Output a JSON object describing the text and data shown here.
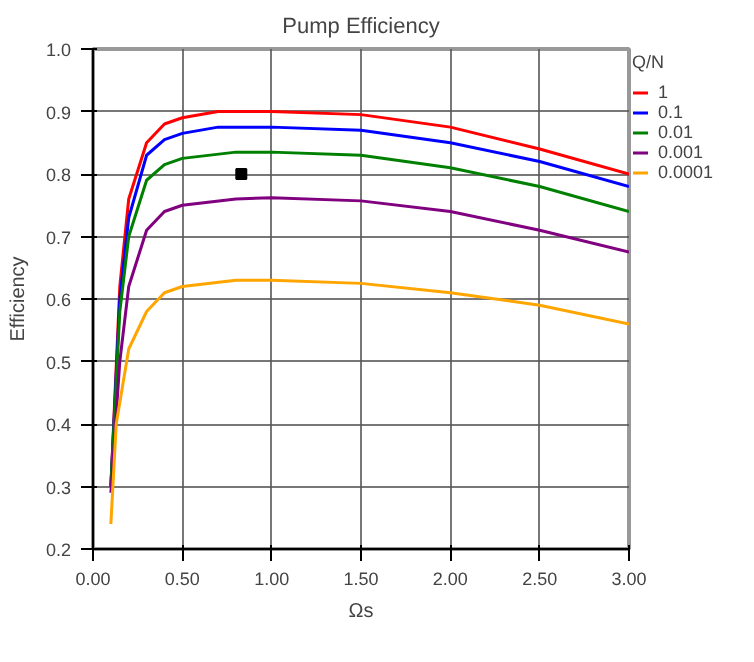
{
  "chart_data": {
    "type": "line",
    "title": "Pump Efficiency",
    "xlabel": "Ωs",
    "ylabel": "Efficiency",
    "legend_title": "Q/N",
    "xlim": [
      0,
      3
    ],
    "ylim": [
      0.2,
      1.0
    ],
    "xticks": [
      {
        "value": 0,
        "label": "0.00"
      },
      {
        "value": 0.5,
        "label": "0.50"
      },
      {
        "value": 1,
        "label": "1.00"
      },
      {
        "value": 1.5,
        "label": "1.50"
      },
      {
        "value": 2,
        "label": "2.00"
      },
      {
        "value": 2.5,
        "label": "2.50"
      },
      {
        "value": 3,
        "label": "3.00"
      }
    ],
    "yticks": [
      {
        "value": 0.2,
        "label": "0.2"
      },
      {
        "value": 0.3,
        "label": "0.3"
      },
      {
        "value": 0.4,
        "label": "0.4"
      },
      {
        "value": 0.5,
        "label": "0.5"
      },
      {
        "value": 0.6,
        "label": "0.6"
      },
      {
        "value": 0.7,
        "label": "0.7"
      },
      {
        "value": 0.8,
        "label": "0.8"
      },
      {
        "value": 0.9,
        "label": "0.9"
      },
      {
        "value": 1.0,
        "label": "1.0"
      }
    ],
    "grid": true,
    "legend": "top right",
    "marker": "none",
    "line_style": "solid",
    "series": [
      {
        "name": "1",
        "color": "#ff0000",
        "x": [
          0.1,
          0.15,
          0.2,
          0.3,
          0.4,
          0.5,
          0.7,
          1.0,
          1.5,
          2.0,
          2.5,
          3.0
        ],
        "values": [
          0.3,
          0.62,
          0.76,
          0.85,
          0.88,
          0.89,
          0.9,
          0.9,
          0.895,
          0.875,
          0.84,
          0.8
        ]
      },
      {
        "name": "0.1",
        "color": "#0000ff",
        "x": [
          0.1,
          0.15,
          0.2,
          0.3,
          0.4,
          0.5,
          0.7,
          1.0,
          1.5,
          2.0,
          2.5,
          3.0
        ],
        "values": [
          0.3,
          0.6,
          0.73,
          0.83,
          0.855,
          0.865,
          0.875,
          0.875,
          0.87,
          0.85,
          0.82,
          0.78
        ]
      },
      {
        "name": "0.01",
        "color": "#008000",
        "x": [
          0.1,
          0.15,
          0.2,
          0.3,
          0.4,
          0.5,
          0.8,
          1.0,
          1.5,
          2.0,
          2.5,
          3.0
        ],
        "values": [
          0.3,
          0.58,
          0.7,
          0.79,
          0.815,
          0.825,
          0.835,
          0.835,
          0.83,
          0.81,
          0.78,
          0.74
        ]
      },
      {
        "name": "0.001",
        "color": "#800080",
        "x": [
          0.1,
          0.15,
          0.2,
          0.3,
          0.4,
          0.5,
          0.8,
          1.0,
          1.5,
          2.0,
          2.5,
          3.0
        ],
        "values": [
          0.29,
          0.5,
          0.62,
          0.71,
          0.74,
          0.75,
          0.76,
          0.762,
          0.757,
          0.74,
          0.71,
          0.675
        ]
      },
      {
        "name": "0.0001",
        "color": "#ffa500",
        "x": [
          0.1,
          0.13,
          0.2,
          0.3,
          0.4,
          0.5,
          0.8,
          1.0,
          1.5,
          2.0,
          2.5,
          3.0
        ],
        "values": [
          0.24,
          0.4,
          0.52,
          0.58,
          0.61,
          0.62,
          0.63,
          0.63,
          0.625,
          0.61,
          0.59,
          0.56
        ]
      },
      {
        "type": "scatter",
        "marker": "square",
        "color": "#000000",
        "x": [
          0.83
        ],
        "values": [
          0.8
        ]
      }
    ]
  }
}
